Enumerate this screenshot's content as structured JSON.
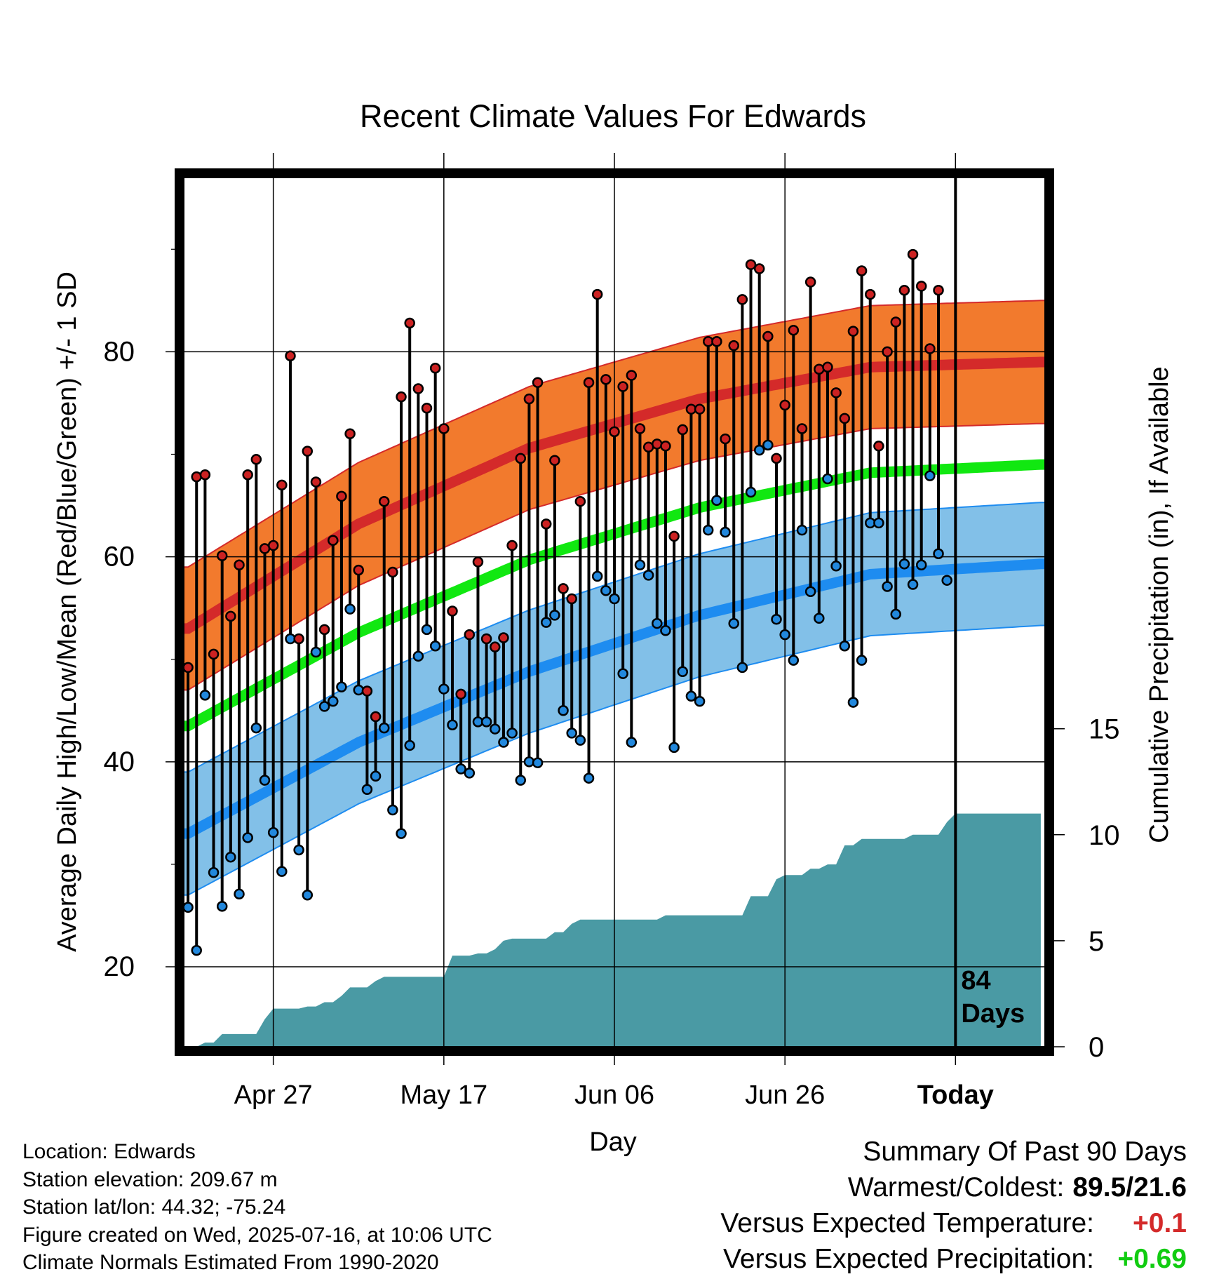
{
  "chart_data": {
    "type": "line",
    "title": "Recent Climate Values For Edwards",
    "xlabel": "Day",
    "ylabel": "Average Daily High/Low/Mean (Red/Blue/Green) +/- 1 SD",
    "y2label": "Cumulative Precipitation (in), If Available",
    "x_tick_labels": [
      "Apr 27",
      "May 17",
      "Jun 06",
      "Jun 26",
      "Today"
    ],
    "x_tick_days": [
      10,
      30,
      50,
      70,
      90
    ],
    "xlim": [
      -0.5,
      100.5
    ],
    "ylim": [
      12.2,
      97
    ],
    "y_ticks": [
      20,
      40,
      60,
      80
    ],
    "y2lim": [
      0,
      41
    ],
    "y2_ticks": [
      0,
      5,
      10,
      15
    ],
    "today_label_line1": "84",
    "today_label_line2": "Days",
    "grid": true,
    "colors": {
      "high_band": "#f27a2d",
      "high_line": "#d42a2a",
      "low_band": "#82c0e8",
      "low_line": "#1e8cf0",
      "mean_line": "#11e811",
      "precip": "#4a9aa4",
      "high_marker": "#cc2222",
      "low_marker": "#2288dd"
    },
    "normals": {
      "high": {
        "x": [
          0,
          20,
          40,
          60,
          80,
          100
        ],
        "y": [
          53.0,
          63.2,
          70.6,
          75.4,
          78.5,
          79.0
        ]
      },
      "low": {
        "x": [
          0,
          20,
          40,
          60,
          80,
          100
        ],
        "y": [
          33.0,
          41.9,
          48.8,
          54.3,
          58.3,
          59.3
        ]
      },
      "mean": {
        "x": [
          0,
          20,
          40,
          60,
          80,
          100
        ],
        "y": [
          43.5,
          52.6,
          59.7,
          64.8,
          68.2,
          69.0
        ]
      },
      "sd": 6
    },
    "series": [
      {
        "name": "High",
        "x": [
          0,
          1,
          2,
          3,
          4,
          5,
          6,
          7,
          8,
          9,
          10,
          11,
          12,
          13,
          14,
          15,
          16,
          17,
          18,
          19,
          20,
          21,
          22,
          23,
          24,
          25,
          26,
          27,
          28,
          29,
          30,
          31,
          32,
          33,
          34,
          35,
          36,
          37,
          38,
          39,
          40,
          41,
          42,
          43,
          44,
          45,
          46,
          47,
          48,
          49,
          50,
          51,
          52,
          53,
          54,
          55,
          56,
          57,
          58,
          59,
          60,
          61,
          62,
          63,
          64,
          65,
          66,
          67,
          68,
          69,
          70,
          71,
          72,
          73,
          74,
          75,
          76,
          77,
          78,
          79,
          80,
          81,
          82,
          83,
          84,
          85,
          86,
          87,
          88,
          89
        ],
        "y": [
          49.2,
          67.8,
          68.0,
          50.5,
          60.1,
          54.2,
          59.2,
          68.0,
          69.5,
          60.8,
          61.1,
          67.0,
          79.6,
          52.0,
          70.3,
          67.3,
          52.9,
          61.6,
          65.9,
          72.0,
          58.7,
          46.9,
          44.4,
          65.4,
          58.5,
          75.6,
          82.8,
          76.4,
          74.5,
          78.4,
          72.5,
          54.7,
          46.6,
          52.4,
          59.5,
          52.0,
          51.2,
          52.1,
          61.1,
          69.6,
          75.4,
          77.0,
          63.2,
          69.4,
          56.9,
          55.9,
          65.4,
          77.0,
          85.6,
          77.3,
          72.2,
          76.6,
          77.7,
          72.5,
          70.7,
          71.0,
          70.8,
          62.0,
          72.4,
          74.4,
          74.4,
          81.0,
          81.0,
          71.5,
          80.6,
          85.1,
          88.5,
          88.1,
          81.5,
          69.6,
          74.8,
          82.1,
          72.5,
          86.8,
          78.3,
          78.5,
          76.0,
          73.5,
          82.0,
          87.9,
          85.6,
          70.8,
          80.0,
          82.9,
          86.0,
          89.5,
          86.4,
          80.3,
          86.0,
          null
        ],
        "color": "#cc2222"
      },
      {
        "name": "Low",
        "x": [
          0,
          1,
          2,
          3,
          4,
          5,
          6,
          7,
          8,
          9,
          10,
          11,
          12,
          13,
          14,
          15,
          16,
          17,
          18,
          19,
          20,
          21,
          22,
          23,
          24,
          25,
          26,
          27,
          28,
          29,
          30,
          31,
          32,
          33,
          34,
          35,
          36,
          37,
          38,
          39,
          40,
          41,
          42,
          43,
          44,
          45,
          46,
          47,
          48,
          49,
          50,
          51,
          52,
          53,
          54,
          55,
          56,
          57,
          58,
          59,
          60,
          61,
          62,
          63,
          64,
          65,
          66,
          67,
          68,
          69,
          70,
          71,
          72,
          73,
          74,
          75,
          76,
          77,
          78,
          79,
          80,
          81,
          82,
          83,
          84,
          85,
          86,
          87,
          88,
          89
        ],
        "y": [
          25.8,
          21.6,
          46.5,
          29.2,
          25.9,
          30.7,
          27.1,
          32.6,
          43.3,
          38.2,
          33.1,
          29.3,
          52.0,
          31.4,
          27.0,
          50.7,
          45.4,
          45.9,
          47.3,
          54.9,
          47.0,
          37.3,
          38.6,
          43.3,
          35.3,
          33.0,
          41.6,
          50.3,
          52.9,
          51.3,
          47.1,
          43.6,
          39.3,
          38.9,
          43.9,
          43.9,
          43.2,
          41.9,
          42.8,
          38.2,
          40.0,
          39.9,
          53.6,
          54.3,
          45.0,
          42.8,
          42.1,
          38.4,
          58.1,
          56.7,
          55.9,
          48.6,
          41.9,
          59.2,
          58.2,
          53.5,
          52.8,
          41.4,
          48.8,
          46.4,
          45.9,
          62.6,
          65.5,
          62.4,
          53.5,
          49.2,
          66.3,
          70.4,
          70.9,
          53.9,
          52.4,
          49.9,
          62.6,
          56.6,
          54.0,
          67.6,
          59.1,
          51.3,
          45.8,
          49.9,
          63.3,
          63.3,
          57.1,
          54.4,
          59.3,
          57.3,
          59.2,
          67.9,
          60.3,
          57.7
        ],
        "color": "#2288dd"
      }
    ],
    "precip_cumulative": {
      "x": [
        0,
        1,
        2,
        3,
        4,
        5,
        6,
        7,
        8,
        9,
        10,
        11,
        12,
        13,
        14,
        15,
        16,
        17,
        18,
        19,
        20,
        21,
        22,
        23,
        24,
        25,
        26,
        27,
        28,
        29,
        30,
        31,
        32,
        33,
        34,
        35,
        36,
        37,
        38,
        39,
        40,
        41,
        42,
        43,
        44,
        45,
        46,
        47,
        48,
        49,
        50,
        51,
        52,
        53,
        54,
        55,
        56,
        57,
        58,
        59,
        60,
        61,
        62,
        63,
        64,
        65,
        66,
        67,
        68,
        69,
        70,
        71,
        72,
        73,
        74,
        75,
        76,
        77,
        78,
        79,
        80,
        81,
        82,
        83,
        84,
        85,
        86,
        87,
        88,
        89,
        90,
        91,
        92,
        93,
        94,
        95,
        96,
        97,
        98,
        99,
        100
      ],
      "y": [
        0.0,
        0.0,
        0.2,
        0.2,
        0.6,
        0.6,
        0.6,
        0.6,
        0.6,
        1.3,
        1.8,
        1.8,
        1.8,
        1.8,
        1.9,
        1.9,
        2.1,
        2.1,
        2.4,
        2.8,
        2.8,
        2.8,
        3.1,
        3.3,
        3.3,
        3.3,
        3.3,
        3.3,
        3.3,
        3.3,
        3.3,
        4.3,
        4.3,
        4.3,
        4.4,
        4.4,
        4.6,
        5.0,
        5.1,
        5.1,
        5.1,
        5.1,
        5.1,
        5.4,
        5.4,
        5.8,
        6.0,
        6.0,
        6.0,
        6.0,
        6.0,
        6.0,
        6.0,
        6.0,
        6.0,
        6.0,
        6.2,
        6.2,
        6.2,
        6.2,
        6.2,
        6.2,
        6.2,
        6.2,
        6.2,
        6.2,
        7.1,
        7.1,
        7.1,
        7.9,
        8.1,
        8.1,
        8.1,
        8.4,
        8.4,
        8.6,
        8.6,
        9.5,
        9.5,
        9.8,
        9.8,
        9.8,
        9.8,
        9.8,
        9.8,
        10.0,
        10.0,
        10.0,
        10.0,
        10.6,
        11.0,
        11.0,
        11.0,
        11.0,
        11.0,
        11.0,
        11.0,
        11.0,
        11.0,
        11.0,
        11.0
      ]
    }
  },
  "info": {
    "location": "Location: Edwards",
    "elevation": "Station elevation: 209.67 m",
    "latlon": "Station lat/lon: 44.32; -75.24",
    "created": "Figure created on Wed, 2025-07-16, at 10:06 UTC",
    "normals": "Climate Normals Estimated From 1990-2020"
  },
  "summary": {
    "heading": "Summary Of Past 90 Days",
    "warm_cold_label": "Warmest/Coldest:",
    "warm_cold_value": "89.5/21.6",
    "temp_label": "Versus Expected Temperature:",
    "temp_value": "+0.1",
    "temp_color": "#d42a2a",
    "precip_label": "Versus Expected Precipitation:",
    "precip_value": "+0.69",
    "precip_color": "#11cc11"
  }
}
